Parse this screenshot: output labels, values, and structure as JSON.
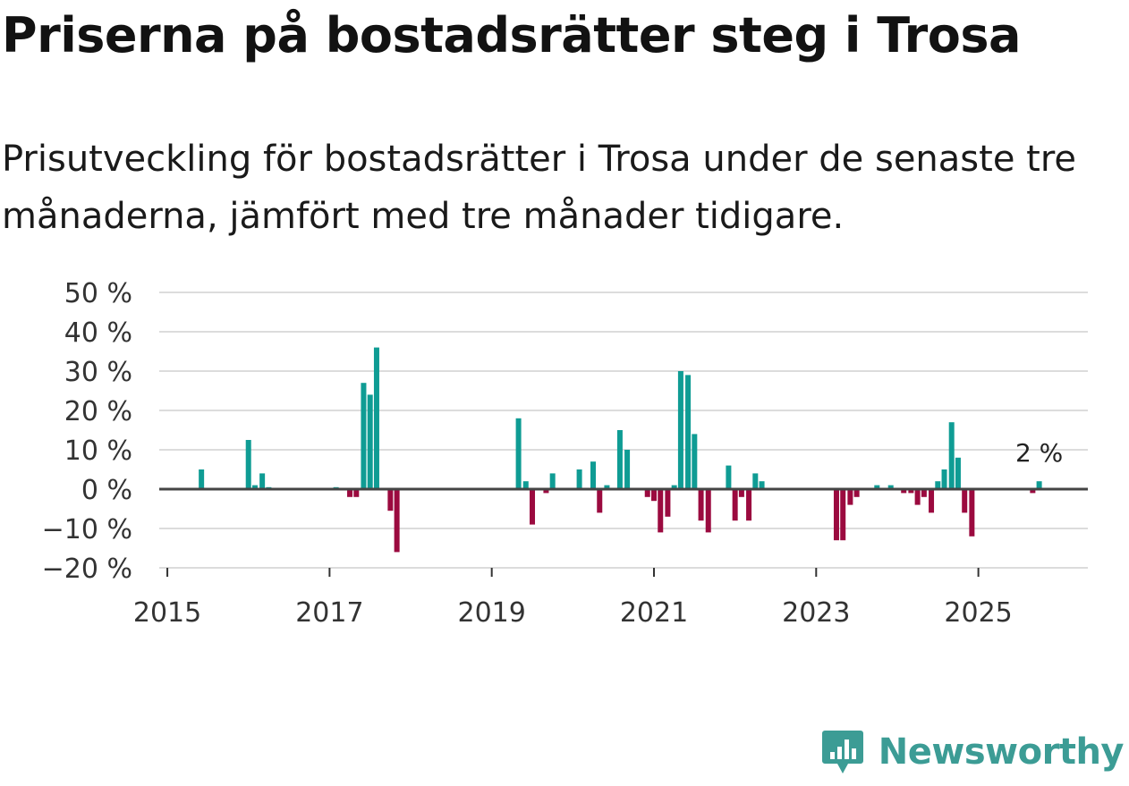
{
  "title": "Priserna på bostadsrätter steg i Trosa",
  "subtitle": "Prisutveckling för bostadsrätter i Trosa under de senaste tre månaderna, jämfört med tre månader tidigare.",
  "brand": {
    "name": "Newsworthy",
    "logo_icon": "bar-chart-speech-bubble-icon"
  },
  "colors": {
    "positive": "#0f9c94",
    "negative": "#9b0a3f",
    "grid": "#dcdcdc",
    "zero_line": "#444444",
    "brand": "#3c9c95"
  },
  "chart_data": {
    "type": "bar",
    "title": "Priserna på bostadsrätter steg i Trosa",
    "xlabel": "",
    "ylabel": "",
    "ylim": [
      -20,
      50
    ],
    "y_ticks": [
      50,
      40,
      30,
      20,
      10,
      0,
      -10,
      -20
    ],
    "y_tick_labels": [
      "50 %",
      "40 %",
      "30 %",
      "20 %",
      "10 %",
      "0 %",
      "−10 %",
      "−20 %"
    ],
    "x_ticks": [
      2015,
      2017,
      2019,
      2021,
      2023,
      2025
    ],
    "x_tick_labels": [
      "2015",
      "2017",
      "2019",
      "2021",
      "2023",
      "2025"
    ],
    "x_range": [
      2014.9,
      2026.35
    ],
    "grid": true,
    "annotation": {
      "text": "2 %",
      "x": 2025.75,
      "y": 2
    },
    "bars": [
      {
        "x": 2015.42,
        "value": 5
      },
      {
        "x": 2016.0,
        "value": 12.5
      },
      {
        "x": 2016.08,
        "value": 1
      },
      {
        "x": 2016.17,
        "value": 4
      },
      {
        "x": 2016.25,
        "value": 0.5
      },
      {
        "x": 2017.08,
        "value": 0.5
      },
      {
        "x": 2017.25,
        "value": -2
      },
      {
        "x": 2017.33,
        "value": -2
      },
      {
        "x": 2017.42,
        "value": 27
      },
      {
        "x": 2017.5,
        "value": 24
      },
      {
        "x": 2017.58,
        "value": 36
      },
      {
        "x": 2017.75,
        "value": -5.5
      },
      {
        "x": 2017.83,
        "value": -16
      },
      {
        "x": 2019.33,
        "value": 18
      },
      {
        "x": 2019.42,
        "value": 2
      },
      {
        "x": 2019.5,
        "value": -9
      },
      {
        "x": 2019.67,
        "value": -1
      },
      {
        "x": 2019.75,
        "value": 4
      },
      {
        "x": 2020.08,
        "value": 5
      },
      {
        "x": 2020.25,
        "value": 7
      },
      {
        "x": 2020.33,
        "value": -6
      },
      {
        "x": 2020.42,
        "value": 1
      },
      {
        "x": 2020.58,
        "value": 15
      },
      {
        "x": 2020.67,
        "value": 10
      },
      {
        "x": 2020.92,
        "value": -2
      },
      {
        "x": 2021.0,
        "value": -3
      },
      {
        "x": 2021.08,
        "value": -11
      },
      {
        "x": 2021.17,
        "value": -7
      },
      {
        "x": 2021.25,
        "value": 1
      },
      {
        "x": 2021.33,
        "value": 30
      },
      {
        "x": 2021.42,
        "value": 29
      },
      {
        "x": 2021.5,
        "value": 14
      },
      {
        "x": 2021.58,
        "value": -8
      },
      {
        "x": 2021.67,
        "value": -11
      },
      {
        "x": 2021.92,
        "value": 6
      },
      {
        "x": 2022.0,
        "value": -8
      },
      {
        "x": 2022.08,
        "value": -2
      },
      {
        "x": 2022.17,
        "value": -8
      },
      {
        "x": 2022.25,
        "value": 4
      },
      {
        "x": 2022.33,
        "value": 2
      },
      {
        "x": 2023.25,
        "value": -13
      },
      {
        "x": 2023.33,
        "value": -13
      },
      {
        "x": 2023.42,
        "value": -4
      },
      {
        "x": 2023.5,
        "value": -2
      },
      {
        "x": 2023.75,
        "value": 1
      },
      {
        "x": 2023.92,
        "value": 1
      },
      {
        "x": 2024.08,
        "value": -1
      },
      {
        "x": 2024.17,
        "value": -1
      },
      {
        "x": 2024.25,
        "value": -4
      },
      {
        "x": 2024.33,
        "value": -2
      },
      {
        "x": 2024.42,
        "value": -6
      },
      {
        "x": 2024.5,
        "value": 2
      },
      {
        "x": 2024.58,
        "value": 5
      },
      {
        "x": 2024.67,
        "value": 17
      },
      {
        "x": 2024.75,
        "value": 8
      },
      {
        "x": 2024.83,
        "value": -6
      },
      {
        "x": 2024.92,
        "value": -12
      },
      {
        "x": 2025.67,
        "value": -1
      },
      {
        "x": 2025.75,
        "value": 2
      }
    ]
  }
}
